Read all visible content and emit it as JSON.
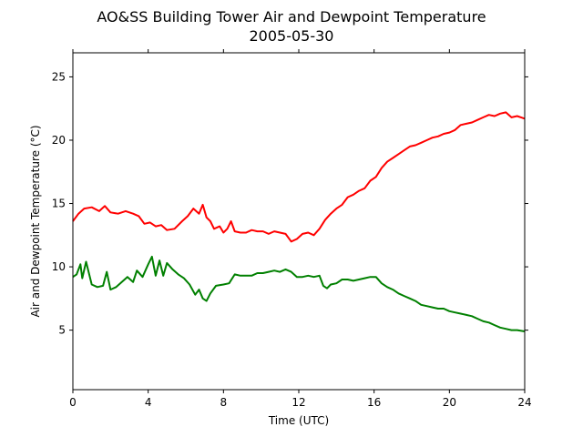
{
  "chart_data": {
    "type": "line",
    "title": "AO&SS Building Tower Air and Dewpoint Temperature",
    "subtitle": "2005-05-30",
    "xlabel": "Time (UTC)",
    "ylabel": "Air and Dewpoint Temperature (°C)",
    "xlim": [
      0,
      24
    ],
    "ylim": [
      0.3,
      26.9
    ],
    "x_ticks": [
      0,
      4,
      8,
      12,
      16,
      20,
      24
    ],
    "y_ticks": [
      5,
      10,
      15,
      20,
      25
    ],
    "grid": false,
    "series": [
      {
        "color": "#ff0000",
        "x": [
          0,
          0.3,
          0.6,
          1.0,
          1.4,
          1.7,
          2.0,
          2.4,
          2.8,
          3.2,
          3.5,
          3.8,
          4.1,
          4.4,
          4.7,
          5.0,
          5.4,
          5.8,
          6.1,
          6.4,
          6.7,
          6.9,
          7.1,
          7.3,
          7.5,
          7.8,
          8.0,
          8.2,
          8.4,
          8.6,
          8.9,
          9.2,
          9.5,
          9.8,
          10.1,
          10.4,
          10.7,
          11.0,
          11.3,
          11.6,
          11.9,
          12.2,
          12.5,
          12.8,
          13.1,
          13.4,
          13.7,
          14.0,
          14.3,
          14.6,
          14.9,
          15.2,
          15.5,
          15.8,
          16.1,
          16.4,
          16.7,
          17.0,
          17.3,
          17.6,
          17.9,
          18.2,
          18.5,
          18.8,
          19.1,
          19.4,
          19.7,
          20.0,
          20.3,
          20.6,
          20.9,
          21.2,
          21.5,
          21.8,
          22.1,
          22.4,
          22.7,
          23.0,
          23.3,
          23.6,
          24.0
        ],
        "y": [
          13.6,
          14.2,
          14.6,
          14.7,
          14.4,
          14.8,
          14.3,
          14.2,
          14.4,
          14.2,
          14.0,
          13.4,
          13.5,
          13.2,
          13.3,
          12.9,
          13.0,
          13.6,
          14.0,
          14.6,
          14.2,
          14.9,
          13.9,
          13.6,
          13.0,
          13.2,
          12.7,
          13.0,
          13.6,
          12.8,
          12.7,
          12.7,
          12.9,
          12.8,
          12.8,
          12.6,
          12.8,
          12.7,
          12.6,
          12.0,
          12.2,
          12.6,
          12.7,
          12.5,
          13.0,
          13.7,
          14.2,
          14.6,
          14.9,
          15.5,
          15.7,
          16.0,
          16.2,
          16.8,
          17.1,
          17.8,
          18.3,
          18.6,
          18.9,
          19.2,
          19.5,
          19.6,
          19.8,
          20.0,
          20.2,
          20.3,
          20.5,
          20.6,
          20.8,
          21.2,
          21.3,
          21.4,
          21.6,
          21.8,
          22.0,
          21.9,
          22.1,
          22.2,
          21.8,
          21.9,
          21.7
        ]
      },
      {
        "color": "#008000",
        "x": [
          0,
          0.2,
          0.4,
          0.5,
          0.7,
          1.0,
          1.3,
          1.6,
          1.8,
          2.0,
          2.3,
          2.6,
          2.9,
          3.2,
          3.4,
          3.7,
          4.0,
          4.2,
          4.4,
          4.6,
          4.8,
          5.0,
          5.3,
          5.6,
          5.9,
          6.2,
          6.5,
          6.7,
          6.9,
          7.1,
          7.3,
          7.6,
          8.0,
          8.3,
          8.6,
          8.9,
          9.2,
          9.5,
          9.8,
          10.1,
          10.4,
          10.7,
          11.0,
          11.3,
          11.6,
          11.9,
          12.2,
          12.5,
          12.8,
          13.1,
          13.3,
          13.5,
          13.7,
          14.0,
          14.3,
          14.6,
          14.9,
          15.2,
          15.5,
          15.8,
          16.1,
          16.4,
          16.7,
          17.0,
          17.3,
          17.6,
          17.9,
          18.2,
          18.5,
          18.8,
          19.1,
          19.4,
          19.7,
          20.0,
          20.3,
          20.6,
          20.9,
          21.2,
          21.5,
          21.8,
          22.1,
          22.4,
          22.7,
          23.0,
          23.3,
          23.6,
          24.0
        ],
        "y": [
          9.2,
          9.4,
          10.2,
          9.1,
          10.4,
          8.6,
          8.4,
          8.5,
          9.6,
          8.2,
          8.4,
          8.8,
          9.2,
          8.8,
          9.7,
          9.2,
          10.2,
          10.8,
          9.3,
          10.5,
          9.3,
          10.3,
          9.8,
          9.4,
          9.1,
          8.6,
          7.8,
          8.2,
          7.5,
          7.3,
          7.9,
          8.5,
          8.6,
          8.7,
          9.4,
          9.3,
          9.3,
          9.3,
          9.5,
          9.5,
          9.6,
          9.7,
          9.6,
          9.8,
          9.6,
          9.2,
          9.2,
          9.3,
          9.2,
          9.3,
          8.5,
          8.3,
          8.6,
          8.7,
          9.0,
          9.0,
          8.9,
          9.0,
          9.1,
          9.2,
          9.2,
          8.7,
          8.4,
          8.2,
          7.9,
          7.7,
          7.5,
          7.3,
          7.0,
          6.9,
          6.8,
          6.7,
          6.7,
          6.5,
          6.4,
          6.3,
          6.2,
          6.1,
          5.9,
          5.7,
          5.6,
          5.4,
          5.2,
          5.1,
          5.0,
          5.0,
          4.9
        ]
      }
    ]
  }
}
